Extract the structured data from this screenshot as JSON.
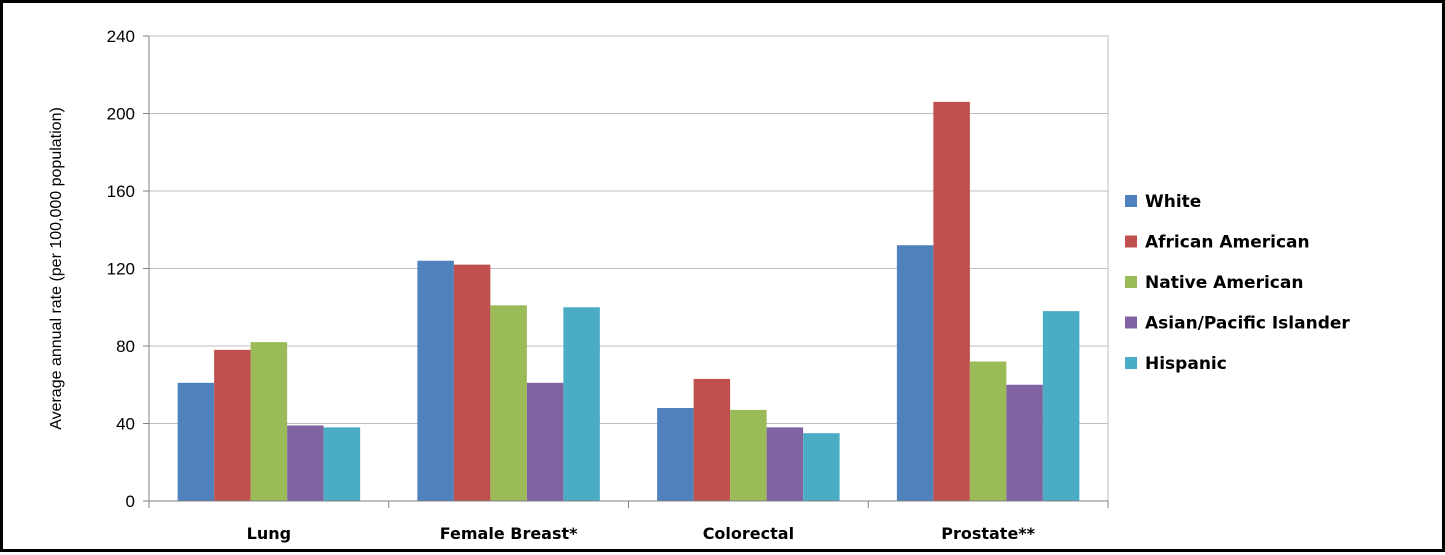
{
  "chart_data": {
    "type": "bar",
    "title": "",
    "xlabel": "",
    "ylabel": "Average annual rate (per 100,000 population)",
    "categories": [
      "Lung",
      "Female Breast*",
      "Colorectal",
      "Prostate**"
    ],
    "series": [
      {
        "name": "White",
        "color": "#4F81BD",
        "values": [
          61,
          124,
          48,
          132
        ]
      },
      {
        "name": "African American",
        "color": "#C0504D",
        "values": [
          78,
          122,
          63,
          206
        ]
      },
      {
        "name": "Native American",
        "color": "#9BBB59",
        "values": [
          82,
          101,
          47,
          72
        ]
      },
      {
        "name": "Asian/Pacific Islander",
        "color": "#8064A2",
        "values": [
          39,
          61,
          38,
          60
        ]
      },
      {
        "name": "Hispanic",
        "color": "#4BACC6",
        "values": [
          38,
          100,
          35,
          98
        ]
      }
    ],
    "ylim": [
      0,
      240
    ],
    "yticks": [
      0,
      40,
      80,
      120,
      160,
      200,
      240
    ],
    "grid": true,
    "legend_position": "right"
  }
}
